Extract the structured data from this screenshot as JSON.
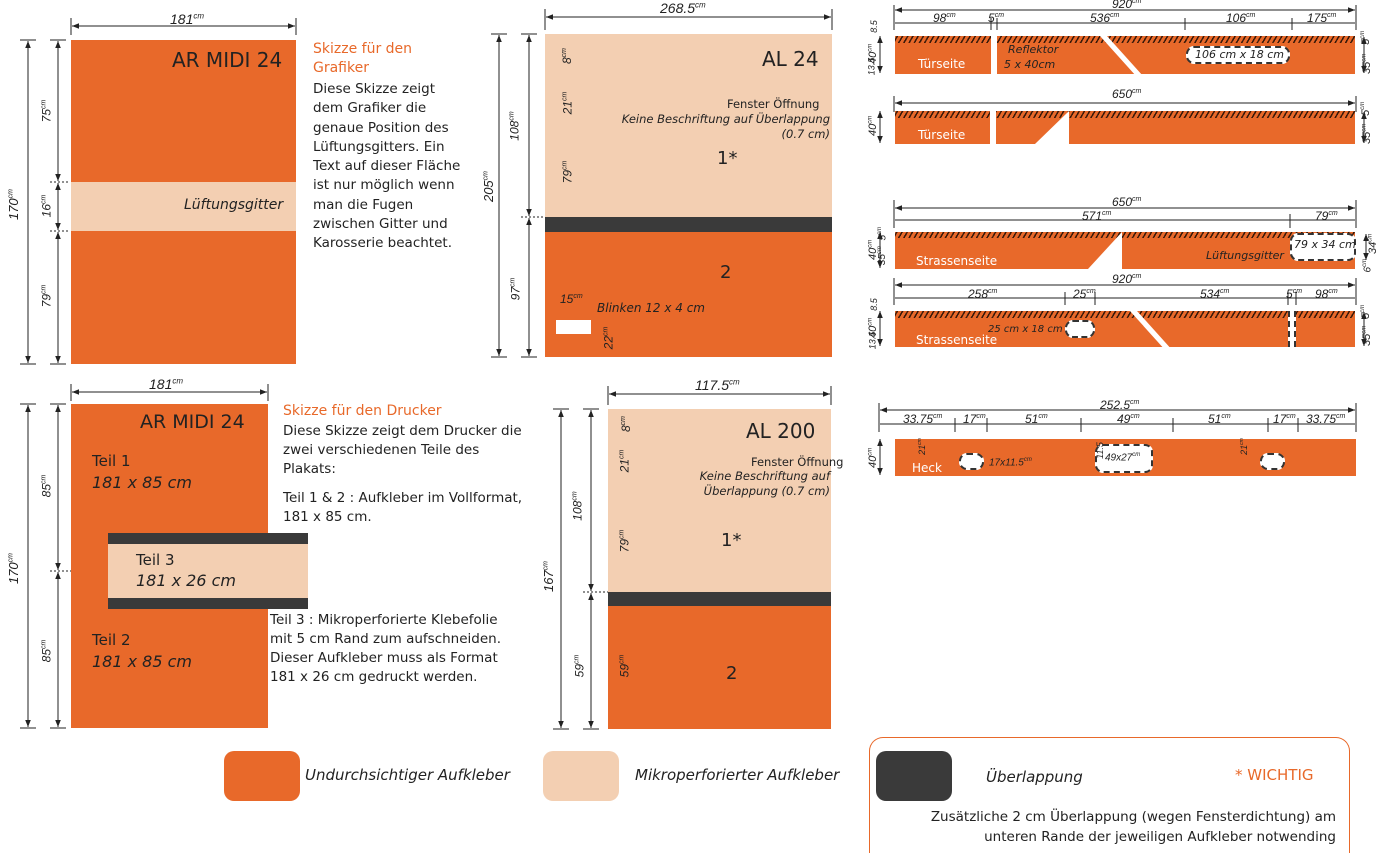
{
  "legend": {
    "opaque": "Undurchsichtiger Aufkleber",
    "micro": "Mikroperforierter Aufkleber",
    "overlap": "Überlappung",
    "important": "* WICHTIG",
    "important_text": "Zusätzliche 2 cm Überlappung (wegen Fensterdichtung) am unteren Rande der jeweiligen Aufkleber notwending",
    "colors": {
      "opaque": "#e8692a",
      "micro": "#f3cfb2",
      "overlap": "#3a3a3a"
    }
  },
  "armidi_graf": {
    "title": "AR MIDI 24",
    "width": "181",
    "height": "170",
    "d1": "75",
    "d2": "16",
    "d3": "79",
    "gitter": "Lüftungsgitter",
    "heading": "Skizze für den Grafiker",
    "text": "Diese Skizze zeigt dem Grafiker die genaue Position des Lüftungsgitters. Ein Text auf dieser Fläche ist nur möglich wenn man die Fugen zwischen Gitter und Karosserie beachtet."
  },
  "armidi_druck": {
    "title": "AR MIDI 24",
    "width": "181",
    "height": "170",
    "d1": "85",
    "d2": "85",
    "teil1": "Teil 1",
    "teil1_size": "181 x 85 cm",
    "teil2": "Teil 2",
    "teil2_size": "181 x 85 cm",
    "teil3": "Teil 3",
    "teil3_size": "181 x 26 cm",
    "heading": "Skizze für den Drucker",
    "text1": "Diese Skizze zeigt dem Drucker die zwei verschiedenen Teile des Plakats:",
    "text2": "Teil 1 & 2 : Aufkleber im Vollformat, 181 x 85 cm.",
    "text3": "Teil 3 : Mikroperforierte Klebefolie mit 5 cm Rand zum aufschneiden. Dieser Aufkleber muss als  Format 181 x 26 cm gedruckt werden."
  },
  "al24": {
    "title": "AL 24",
    "width": "268.5",
    "total": "205",
    "upper": "108",
    "lower": "97",
    "d8": "8",
    "d21": "21",
    "d79": "79",
    "d22": "22",
    "d15": "15",
    "fenster": "Fenster Öffnung",
    "keine": "Keine Beschriftung auf Überlappung (0.7 cm)",
    "p1": "1*",
    "p2": "2",
    "blinken": "Blinken 12 x 4 cm"
  },
  "al200": {
    "title": "AL 200",
    "width": "117.5",
    "total": "167",
    "upper": "108",
    "lower": "59",
    "d8": "8",
    "d21": "21",
    "d79": "79",
    "d59": "59",
    "fenster": "Fenster Öffnung",
    "keine": "Keine Beschriftung auf Überlappung (0.7 cm)",
    "p1": "1*",
    "p2": "2"
  },
  "sides": {
    "tuer1": {
      "total": "920",
      "segs": [
        "98",
        "5",
        "536",
        "106",
        "175"
      ],
      "label": "Türseite",
      "reflektor": "Reflektor",
      "reflektor_size": "5 x 40cm",
      "box": "106 cm x 18 cm",
      "h40": "40",
      "h8": "8.5",
      "h13": "13.5",
      "h5": "5",
      "h35": "35"
    },
    "tuer2": {
      "total": "650",
      "label": "Türseite",
      "h40": "40",
      "h5": "5",
      "h35": "35"
    },
    "strasse1": {
      "total": "650",
      "segs": [
        "571",
        "79"
      ],
      "label": "Strassenseite",
      "gitter": "Lüftungsgitter",
      "box": "79 x 34 cm",
      "h40": "40",
      "h35": "35",
      "h5": "5",
      "h34": "34",
      "h6": "6"
    },
    "strasse2": {
      "total": "920",
      "segs": [
        "258",
        "25",
        "534",
        "5",
        "98"
      ],
      "label": "Strassenseite",
      "box": "25 cm x 18 cm",
      "h40": "40",
      "h8": "8.5",
      "h13": "13.5",
      "h5": "5",
      "h35": "35"
    },
    "heck": {
      "total": "252.5",
      "segs": [
        "33.75",
        "17",
        "51",
        "49",
        "51",
        "17",
        "33.75"
      ],
      "label": "Heck",
      "h40": "40",
      "b1": "17x11.5",
      "b2": "49x27",
      "d21a": "21",
      "d11": "11.5",
      "d21b": "21"
    }
  },
  "unit": "cm"
}
